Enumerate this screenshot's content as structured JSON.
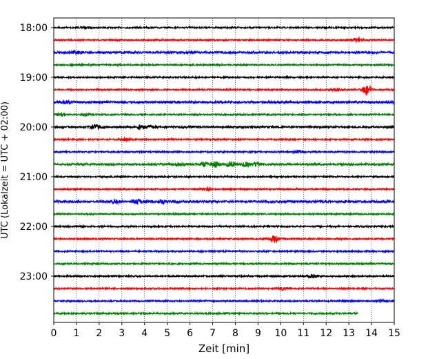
{
  "chart_data": {
    "type": "line",
    "title": "",
    "xlabel": "Zeit  [min]",
    "ylabel": "UTC (Lokalzeit = UTC + 02:00)",
    "xlim": [
      0,
      15
    ],
    "x_ticks": [
      0,
      1,
      2,
      3,
      4,
      5,
      6,
      7,
      8,
      9,
      10,
      11,
      12,
      13,
      14,
      15
    ],
    "y_ticks": [
      "18:00",
      "19:00",
      "20:00",
      "21:00",
      "22:00",
      "23:00"
    ],
    "grid": "vertical dotted",
    "trace_colors": [
      "#000000",
      "#ff0000",
      "#0000ff",
      "#008000"
    ],
    "traces": [
      {
        "start": "18:00",
        "color": "black",
        "amplitude": 1.0,
        "events": [
          [
            1.5,
            0.8
          ],
          [
            6.0,
            0.6
          ]
        ]
      },
      {
        "start": "18:15",
        "color": "red",
        "amplitude": 1.0,
        "events": [
          [
            13.4,
            3.0
          ]
        ]
      },
      {
        "start": "18:30",
        "color": "blue",
        "amplitude": 1.4,
        "events": [
          [
            1.0,
            1.8
          ]
        ]
      },
      {
        "start": "18:45",
        "color": "green",
        "amplitude": 1.0,
        "events": []
      },
      {
        "start": "19:00",
        "color": "black",
        "amplitude": 1.0,
        "events": []
      },
      {
        "start": "19:15",
        "color": "red",
        "amplitude": 1.0,
        "events": [
          [
            12.5,
            1.6
          ],
          [
            13.8,
            6.5
          ]
        ]
      },
      {
        "start": "19:30",
        "color": "blue",
        "amplitude": 1.5,
        "events": [
          [
            0.5,
            1.5
          ]
        ]
      },
      {
        "start": "19:45",
        "color": "green",
        "amplitude": 1.0,
        "events": [
          [
            0.3,
            1.6
          ],
          [
            1.5,
            1.4
          ]
        ]
      },
      {
        "start": "20:00",
        "color": "black",
        "amplitude": 1.2,
        "events": [
          [
            1.8,
            3.0
          ],
          [
            3.9,
            2.4
          ],
          [
            4.3,
            1.5
          ],
          [
            6.0,
            1.2
          ]
        ]
      },
      {
        "start": "20:15",
        "color": "red",
        "amplitude": 1.0,
        "events": [
          [
            3.2,
            2.2
          ]
        ]
      },
      {
        "start": "20:30",
        "color": "blue",
        "amplitude": 1.0,
        "events": [
          [
            10.8,
            1.8
          ]
        ]
      },
      {
        "start": "20:45",
        "color": "green",
        "amplitude": 1.3,
        "events": [
          [
            5.5,
            2.0
          ],
          [
            6.6,
            2.8
          ],
          [
            7.1,
            3.5
          ],
          [
            7.8,
            3.8
          ],
          [
            8.5,
            2.5
          ],
          [
            9.0,
            2.0
          ]
        ]
      },
      {
        "start": "21:00",
        "color": "black",
        "amplitude": 1.0,
        "events": []
      },
      {
        "start": "21:15",
        "color": "red",
        "amplitude": 1.0,
        "events": [
          [
            6.8,
            1.8
          ]
        ]
      },
      {
        "start": "21:30",
        "color": "blue",
        "amplitude": 1.5,
        "events": [
          [
            2.7,
            2.0
          ],
          [
            3.7,
            3.0
          ],
          [
            4.8,
            2.0
          ]
        ]
      },
      {
        "start": "21:45",
        "color": "green",
        "amplitude": 1.0,
        "events": []
      },
      {
        "start": "22:00",
        "color": "black",
        "amplitude": 1.0,
        "events": []
      },
      {
        "start": "22:15",
        "color": "red",
        "amplitude": 1.0,
        "events": [
          [
            9.7,
            5.0
          ]
        ]
      },
      {
        "start": "22:30",
        "color": "blue",
        "amplitude": 1.0,
        "events": []
      },
      {
        "start": "22:45",
        "color": "green",
        "amplitude": 1.0,
        "events": []
      },
      {
        "start": "23:00",
        "color": "black",
        "amplitude": 1.0,
        "events": [
          [
            11.4,
            2.5
          ]
        ]
      },
      {
        "start": "23:15",
        "color": "red",
        "amplitude": 1.0,
        "events": [
          [
            10.1,
            2.0
          ]
        ]
      },
      {
        "start": "23:30",
        "color": "blue",
        "amplitude": 1.0,
        "events": [
          [
            14.4,
            1.4
          ]
        ]
      },
      {
        "start": "23:45",
        "color": "green",
        "amplitude": 1.0,
        "end_min": 13.4,
        "events": []
      }
    ]
  }
}
